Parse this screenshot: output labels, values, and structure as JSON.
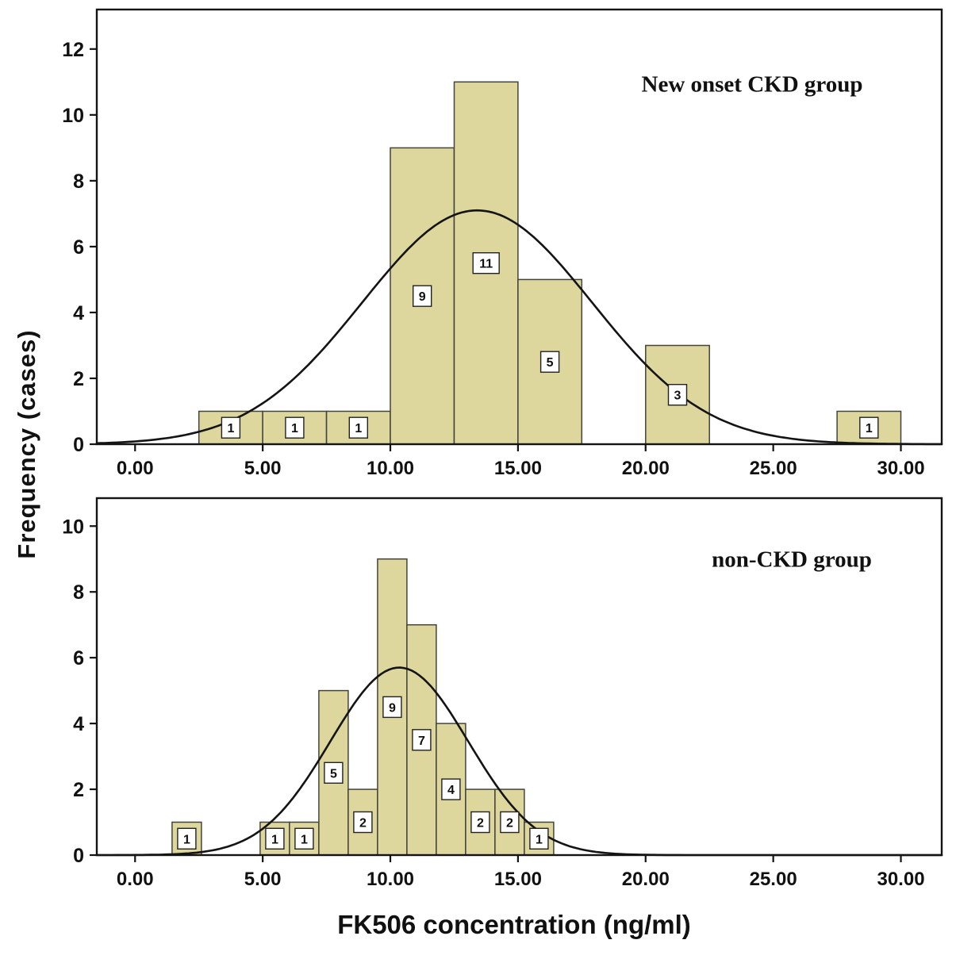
{
  "figure": {
    "y_axis_title": "Frequency (cases)",
    "x_axis_title": "FK506 concentration (ng/ml)"
  },
  "colors": {
    "background": "#ffffff",
    "bar_fill": "#ddd79e",
    "bar_stroke": "#44443a",
    "curve": "#141414",
    "axis": "#141414",
    "label_box_fill": "#ffffff",
    "label_box_stroke": "#222222",
    "text": "#111111"
  },
  "chart_data": [
    {
      "type": "bar",
      "subtype": "histogram-with-normal-curve",
      "panel": "top",
      "annotation": "New onset CKD group",
      "title": "New onset CKD group",
      "xlabel": "FK506 concentration (ng/ml)",
      "ylabel": "Frequency (cases)",
      "xlim": [
        -1.5,
        31.6
      ],
      "ylim": [
        0,
        13.2
      ],
      "x_tick_values": [
        0,
        5,
        10,
        15,
        20,
        25,
        30
      ],
      "x_tick_labels": [
        "0.00",
        "5.00",
        "10.00",
        "15.00",
        "20.00",
        "25.00",
        "30.00"
      ],
      "y_tick_values": [
        0,
        2,
        4,
        6,
        8,
        10,
        12
      ],
      "y_tick_labels": [
        "0",
        "2",
        "4",
        "6",
        "8",
        "10",
        "12"
      ],
      "bars": [
        {
          "x0": 2.5,
          "x1": 5.0,
          "count": 1
        },
        {
          "x0": 5.0,
          "x1": 7.5,
          "count": 1
        },
        {
          "x0": 7.5,
          "x1": 10.0,
          "count": 1
        },
        {
          "x0": 10.0,
          "x1": 12.5,
          "count": 9
        },
        {
          "x0": 12.5,
          "x1": 15.0,
          "count": 11
        },
        {
          "x0": 15.0,
          "x1": 17.5,
          "count": 5
        },
        {
          "x0": 20.0,
          "x1": 22.5,
          "count": 3
        },
        {
          "x0": 27.5,
          "x1": 30.0,
          "count": 1
        }
      ],
      "normal_curve": {
        "mean": 13.4,
        "sd": 4.5,
        "peak": 7.1
      }
    },
    {
      "type": "bar",
      "subtype": "histogram-with-normal-curve",
      "panel": "bottom",
      "annotation": "non-CKD group",
      "title": "non-CKD group",
      "xlabel": "FK506 concentration (ng/ml)",
      "ylabel": "Frequency (cases)",
      "xlim": [
        -1.5,
        31.6
      ],
      "ylim": [
        0,
        10.85
      ],
      "x_tick_values": [
        0,
        5,
        10,
        15,
        20,
        25,
        30
      ],
      "x_tick_labels": [
        "0.00",
        "5.00",
        "10.00",
        "15.00",
        "20.00",
        "25.00",
        "30.00"
      ],
      "y_tick_values": [
        0,
        2,
        4,
        6,
        8,
        10
      ],
      "y_tick_labels": [
        "0",
        "2",
        "4",
        "6",
        "8",
        "10"
      ],
      "bars": [
        {
          "x0": 1.45,
          "x1": 2.6,
          "count": 1
        },
        {
          "x0": 4.9,
          "x1": 6.05,
          "count": 1
        },
        {
          "x0": 6.05,
          "x1": 7.2,
          "count": 1
        },
        {
          "x0": 7.2,
          "x1": 8.35,
          "count": 5
        },
        {
          "x0": 8.35,
          "x1": 9.5,
          "count": 2
        },
        {
          "x0": 9.5,
          "x1": 10.65,
          "count": 9
        },
        {
          "x0": 10.65,
          "x1": 11.8,
          "count": 7
        },
        {
          "x0": 11.8,
          "x1": 12.95,
          "count": 4
        },
        {
          "x0": 12.95,
          "x1": 14.1,
          "count": 2
        },
        {
          "x0": 14.1,
          "x1": 15.25,
          "count": 2
        },
        {
          "x0": 15.25,
          "x1": 16.4,
          "count": 1
        }
      ],
      "normal_curve": {
        "mean": 10.35,
        "sd": 2.7,
        "peak": 5.7
      }
    }
  ]
}
